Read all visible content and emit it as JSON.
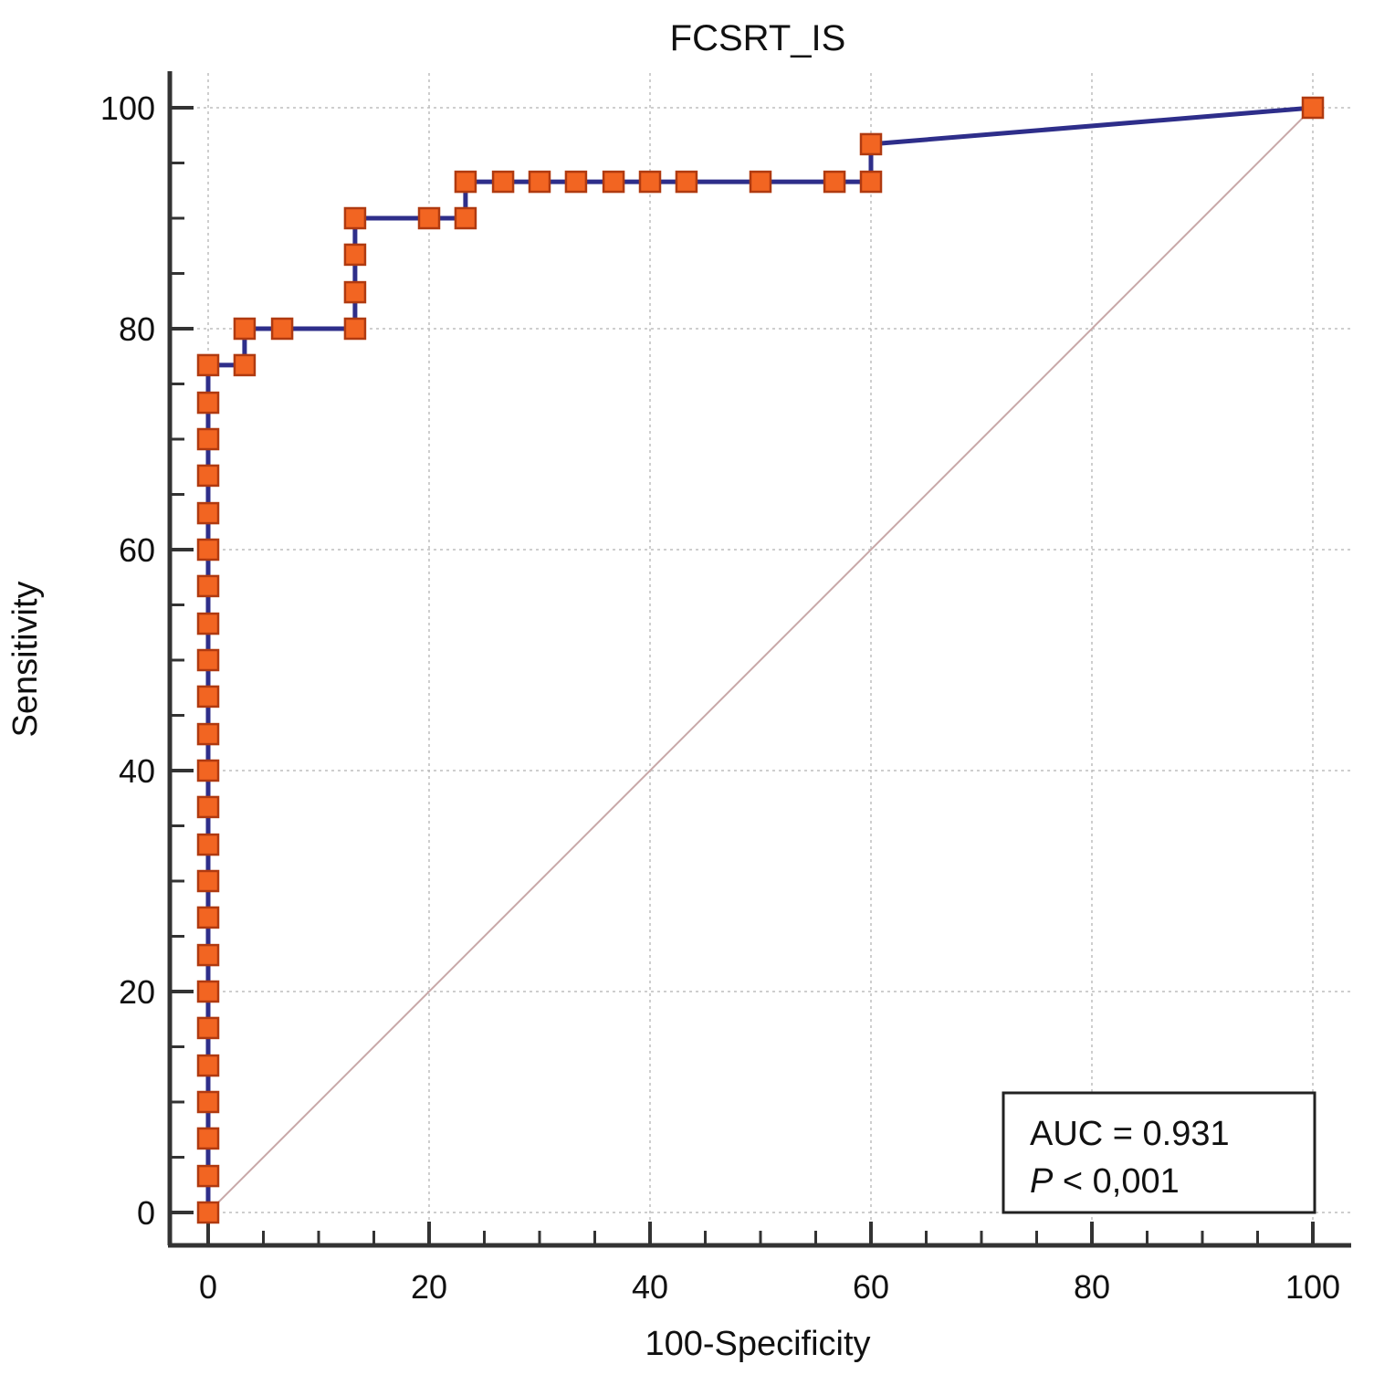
{
  "chart_data": {
    "type": "line",
    "title": "FCSRT_IS",
    "xlabel": "100-Specificity",
    "ylabel": "Sensitivity",
    "xlim": [
      0,
      100
    ],
    "ylim": [
      0,
      100
    ],
    "xticks": [
      0,
      20,
      40,
      60,
      80,
      100
    ],
    "yticks": [
      0,
      20,
      40,
      60,
      80,
      100
    ],
    "grid": true,
    "series": [
      {
        "marker": "square",
        "line_color": "#2e2e8a",
        "marker_fill": "#f26522",
        "marker_edge": "#b03a10",
        "x": [
          0,
          0,
          0,
          0,
          0,
          0,
          0,
          0,
          0,
          0,
          0,
          0,
          0,
          0,
          0,
          0,
          0,
          0,
          0,
          0,
          0,
          0,
          0,
          0,
          3.3,
          3.3,
          6.7,
          13.3,
          13.3,
          13.3,
          13.3,
          20,
          23.3,
          23.3,
          26.7,
          30,
          33.3,
          36.7,
          40,
          43.3,
          50,
          56.7,
          60,
          60,
          100
        ],
        "y": [
          0,
          3.3,
          6.7,
          10,
          13.3,
          16.7,
          20,
          23.3,
          26.7,
          30,
          33.3,
          36.7,
          40,
          43.3,
          46.7,
          50,
          53.3,
          56.7,
          60,
          63.3,
          66.7,
          70,
          73.3,
          76.7,
          76.7,
          80,
          80,
          80,
          83.3,
          86.7,
          90,
          90,
          90,
          93.3,
          93.3,
          93.3,
          93.3,
          93.3,
          93.3,
          93.3,
          93.3,
          93.3,
          93.3,
          96.7,
          100
        ]
      },
      {
        "type": "reference-diagonal",
        "color": "#c8a8a8",
        "x": [
          0,
          100
        ],
        "y": [
          0,
          100
        ]
      }
    ],
    "annotation": {
      "auc_text": "AUC = 0.931",
      "p_italic": "P",
      "p_rest": " < 0,001",
      "placement": "bottom-right"
    }
  }
}
